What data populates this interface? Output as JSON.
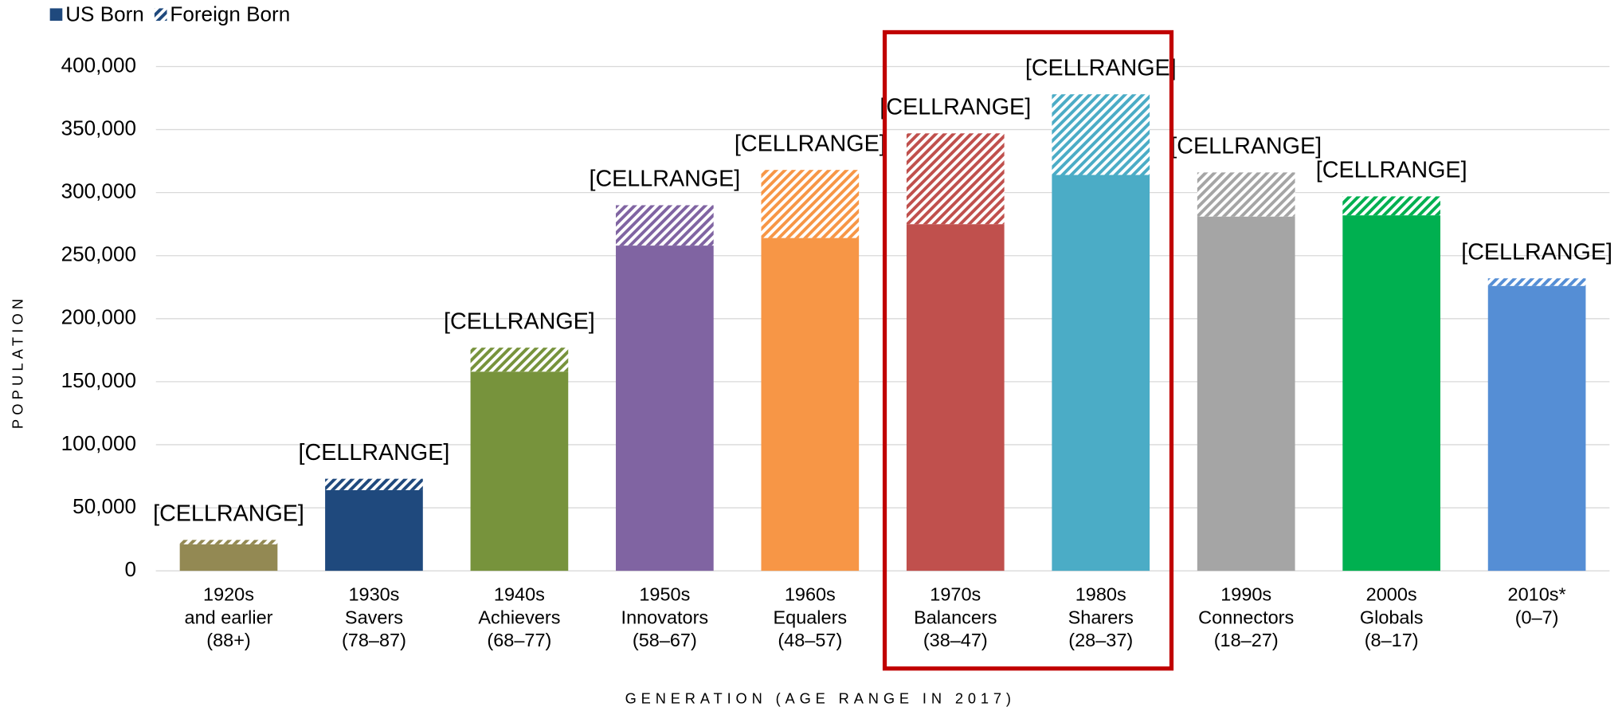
{
  "chart_data": {
    "type": "stacked-bar",
    "x_label": "GENERATION (AGE RANGE IN 2017)",
    "y_label": "POPULATION",
    "categories": [
      [
        "1920s",
        "and earlier",
        "(88+)"
      ],
      [
        "1930s",
        "Savers",
        "(78–87)"
      ],
      [
        "1940s",
        "Achievers",
        "(68–77)"
      ],
      [
        "1950s",
        "Innovators",
        "(58–67)"
      ],
      [
        "1960s",
        "Equalers",
        "(48–57)"
      ],
      [
        "1970s",
        "Balancers",
        "(38–47)"
      ],
      [
        "1980s",
        "Sharers",
        "(28–37)"
      ],
      [
        "1990s",
        "Connectors",
        "(18–27)"
      ],
      [
        "2000s",
        "Globals",
        "(8–17)"
      ],
      [
        "2010s*",
        "(0–7)"
      ]
    ],
    "category_colors": [
      "#938953",
      "#1f497d",
      "#77933c",
      "#8064a2",
      "#f79646",
      "#c0504d",
      "#4bacc6",
      "#a5a5a5",
      "#00b050",
      "#558ed5"
    ],
    "series": [
      {
        "name": "US Born",
        "color": "#1f497d",
        "pattern": "solid",
        "values": [
          21000,
          64000,
          158000,
          258000,
          264000,
          275000,
          314000,
          281000,
          282000,
          226000
        ]
      },
      {
        "name": "Foreign Born",
        "color": "#1f497d",
        "pattern": "hatch",
        "values": [
          3500,
          9000,
          19000,
          32000,
          54000,
          72000,
          64000,
          35000,
          15000,
          6000
        ]
      }
    ],
    "data_labels": [
      "[CELLRANGE]",
      "[CELLRANGE]",
      "[CELLRANGE]",
      "[CELLRANGE]",
      "[CELLRANGE]",
      "[CELLRANGE]",
      "[CELLRANGE]",
      "[CELLRANGE]",
      "[CELLRANGE]",
      "[CELLRANGE]"
    ],
    "highlight": [
      5,
      6
    ],
    "highlight_color": "#c00000",
    "ylim": [
      0,
      400000
    ],
    "yticks": [
      0,
      {
        "value": 50000,
        "label": "50,000"
      },
      {
        "value": 100000,
        "label": "100,000"
      },
      {
        "value": 150000,
        "label": "150,000"
      },
      {
        "value": 200000,
        "label": "200,000"
      },
      {
        "value": 250000,
        "label": "250,000"
      },
      {
        "value": 300000,
        "label": "300,000"
      },
      {
        "value": 350000,
        "label": "350,000"
      },
      {
        "value": 400000,
        "label": "400,000"
      }
    ],
    "grid": true,
    "legend": "top-left"
  }
}
